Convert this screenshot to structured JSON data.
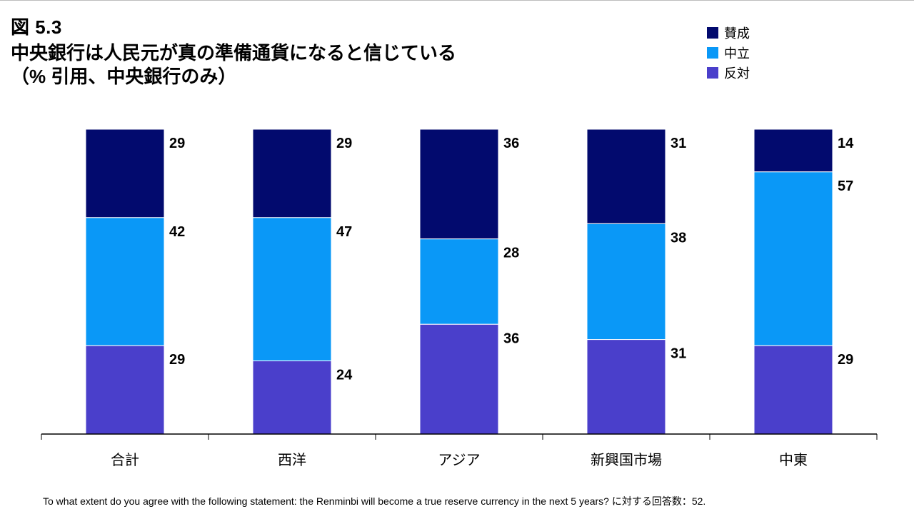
{
  "figure_label": "図 5.3",
  "title_line1": "中央銀行は人民元が真の準備通貨になると信じている",
  "title_line2": "（% 引用、中央銀行のみ）",
  "footnote": "To what extent do you agree with the following statement: the Renminbi will become a true reserve currency in the next 5 years? に対する回答数：52.",
  "legend": [
    {
      "name": "賛成",
      "color": "#020A6E"
    },
    {
      "name": "中立",
      "color": "#0A98F7"
    },
    {
      "name": "反対",
      "color": "#4A3FCB"
    }
  ],
  "chart_data": {
    "type": "bar",
    "stacked": true,
    "categories": [
      "合計",
      "西洋",
      "アジア",
      "新興国市場",
      "中東"
    ],
    "series": [
      {
        "name": "賛成",
        "color": "#020A6E",
        "values": [
          29,
          29,
          36,
          31,
          14
        ]
      },
      {
        "name": "中立",
        "color": "#0A98F7",
        "values": [
          42,
          47,
          28,
          38,
          57
        ]
      },
      {
        "name": "反対",
        "color": "#4A3FCB",
        "values": [
          29,
          24,
          36,
          31,
          29
        ]
      }
    ],
    "ylim": [
      0,
      100
    ],
    "grid": false,
    "legend_position": "top-right",
    "data_labels": true
  }
}
